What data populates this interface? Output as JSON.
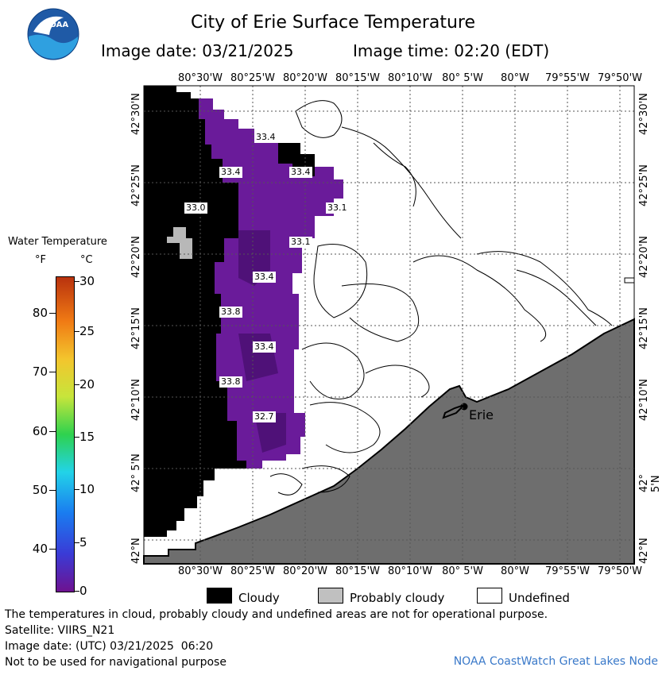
{
  "header": {
    "title": "City of Erie Surface Temperature",
    "image_date": "Image date: 03/21/2025",
    "image_time": "Image time: 02:20 (EDT)",
    "logo_text": "NOAA"
  },
  "colorbar": {
    "title": "Water Temperature",
    "unit_f": "°F",
    "unit_c": "°C",
    "f_ticks": [
      "80",
      "70",
      "60",
      "50",
      "40"
    ],
    "c_ticks": [
      "30",
      "25",
      "20",
      "15",
      "10",
      "5",
      "0"
    ]
  },
  "map": {
    "lon_labels": [
      "80°30'W",
      "80°25'W",
      "80°20'W",
      "80°15'W",
      "80°10'W",
      "80° 5'W",
      "80°W",
      "79°55'W",
      "79°50'W"
    ],
    "lat_labels": [
      "42°30'N",
      "42°25'N",
      "42°20'N",
      "42°15'N",
      "42°10'N",
      "42° 5'N",
      "42°N"
    ],
    "city_label": "Erie",
    "temp_labels": [
      "33.4",
      "33.4",
      "33.4",
      "33.0",
      "33.1",
      "33.1",
      "33.4",
      "33.8",
      "33.4",
      "33.8",
      "32.7"
    ]
  },
  "legend": {
    "cloudy": "Cloudy",
    "probably_cloudy": "Probably cloudy",
    "undefined": "Undefined"
  },
  "footer": {
    "disclaimer": "The temperatures in cloud, probably cloudy and undefined areas are not for operational purpose.",
    "satellite": "Satellite: VIIRS_N21",
    "utc_date": "Image date: (UTC) 03/21/2025  06:20",
    "nav_note": "Not to be used for navigational purpose",
    "node": "NOAA CoastWatch Great Lakes Node"
  },
  "colors": {
    "cloudy": "#000000",
    "probably_cloudy": "#c0c0c0",
    "undefined": "#ffffff",
    "land": "#6e6e6e",
    "water_cold": "#6a1b9a",
    "node_link": "#3a79c9"
  }
}
